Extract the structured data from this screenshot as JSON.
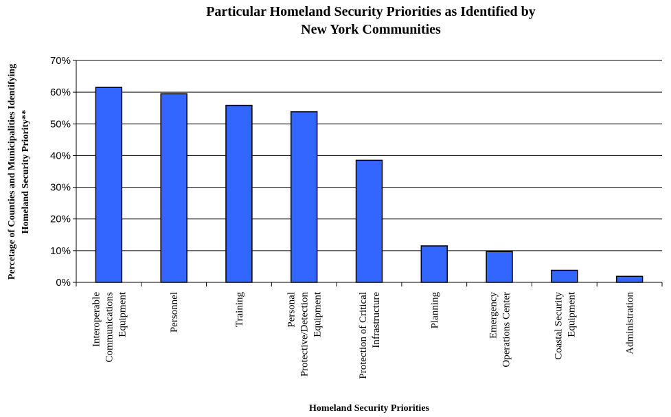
{
  "chart_data": {
    "type": "bar",
    "title": [
      "Particular Homeland Security Priorities as Identified by",
      "New York Communities"
    ],
    "xlabel": "Homeland Security Priorities",
    "ylabel": [
      "Percetage of Counties and Municipalities Identifying",
      "Homeland Security Priority**"
    ],
    "ylim": [
      0,
      0.7
    ],
    "yticks": [
      0,
      0.1,
      0.2,
      0.3,
      0.4,
      0.5,
      0.6,
      0.7
    ],
    "ytick_labels": [
      "0%",
      "10%",
      "20%",
      "30%",
      "40%",
      "50%",
      "60%",
      "70%"
    ],
    "grid": true,
    "bar_color": "#3366ff",
    "categories": [
      [
        "Interoperable",
        "Communications",
        "Equipment"
      ],
      [
        "Personnel"
      ],
      [
        "Training"
      ],
      [
        "Personal",
        "Protective/Detection",
        "Equipment"
      ],
      [
        "Protection of Critical",
        "Infrastructure"
      ],
      [
        "Planning"
      ],
      [
        "Emergency",
        "Operations Center"
      ],
      [
        "Coastal Security",
        "Equipment"
      ],
      [
        "Administration"
      ]
    ],
    "values": [
      0.615,
      0.595,
      0.558,
      0.538,
      0.385,
      0.115,
      0.097,
      0.038,
      0.019
    ]
  }
}
